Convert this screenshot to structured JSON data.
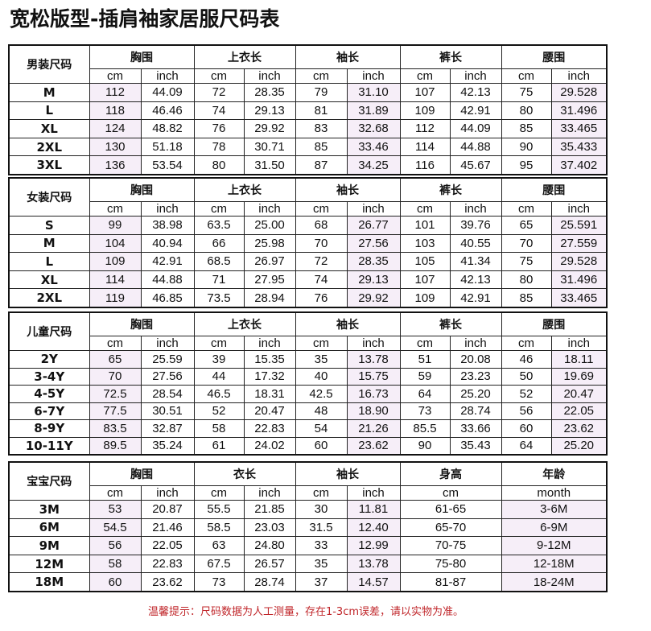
{
  "title": "宽松版型-插肩袖家居服尺码表",
  "tables": [
    {
      "label": "男装尺码",
      "groups": [
        {
          "name": "胸围",
          "units": [
            "cm",
            "inch"
          ]
        },
        {
          "name": "上衣长",
          "units": [
            "cm",
            "inch"
          ]
        },
        {
          "name": "袖长",
          "units": [
            "cm",
            "inch"
          ]
        },
        {
          "name": "裤长",
          "units": [
            "cm",
            "inch"
          ]
        },
        {
          "name": "腰围",
          "units": [
            "cm",
            "inch"
          ]
        }
      ],
      "rows": [
        [
          "M",
          "112",
          "44.09",
          "72",
          "28.35",
          "79",
          "31.10",
          "107",
          "42.13",
          "75",
          "29.528"
        ],
        [
          "L",
          "118",
          "46.46",
          "74",
          "29.13",
          "81",
          "31.89",
          "109",
          "42.91",
          "80",
          "31.496"
        ],
        [
          "XL",
          "124",
          "48.82",
          "76",
          "29.92",
          "83",
          "32.68",
          "112",
          "44.09",
          "85",
          "33.465"
        ],
        [
          "2XL",
          "130",
          "51.18",
          "78",
          "30.71",
          "85",
          "33.46",
          "114",
          "44.88",
          "90",
          "35.433"
        ],
        [
          "3XL",
          "136",
          "53.54",
          "80",
          "31.50",
          "87",
          "34.25",
          "116",
          "45.67",
          "95",
          "37.402"
        ]
      ]
    },
    {
      "label": "女装尺码",
      "groups": [
        {
          "name": "胸围",
          "units": [
            "cm",
            "inch"
          ]
        },
        {
          "name": "上衣长",
          "units": [
            "cm",
            "inch"
          ]
        },
        {
          "name": "袖长",
          "units": [
            "cm",
            "inch"
          ]
        },
        {
          "name": "裤长",
          "units": [
            "cm",
            "inch"
          ]
        },
        {
          "name": "腰围",
          "units": [
            "cm",
            "inch"
          ]
        }
      ],
      "rows": [
        [
          "S",
          "99",
          "38.98",
          "63.5",
          "25.00",
          "68",
          "26.77",
          "101",
          "39.76",
          "65",
          "25.591"
        ],
        [
          "M",
          "104",
          "40.94",
          "66",
          "25.98",
          "70",
          "27.56",
          "103",
          "40.55",
          "70",
          "27.559"
        ],
        [
          "L",
          "109",
          "42.91",
          "68.5",
          "26.97",
          "72",
          "28.35",
          "105",
          "41.34",
          "75",
          "29.528"
        ],
        [
          "XL",
          "114",
          "44.88",
          "71",
          "27.95",
          "74",
          "29.13",
          "107",
          "42.13",
          "80",
          "31.496"
        ],
        [
          "2XL",
          "119",
          "46.85",
          "73.5",
          "28.94",
          "76",
          "29.92",
          "109",
          "42.91",
          "85",
          "33.465"
        ]
      ]
    },
    {
      "label": "儿童尺码",
      "groups": [
        {
          "name": "胸围",
          "units": [
            "cm",
            "inch"
          ]
        },
        {
          "name": "上衣长",
          "units": [
            "cm",
            "inch"
          ]
        },
        {
          "name": "袖长",
          "units": [
            "cm",
            "inch"
          ]
        },
        {
          "name": "裤长",
          "units": [
            "cm",
            "inch"
          ]
        },
        {
          "name": "腰围",
          "units": [
            "cm",
            "inch"
          ]
        }
      ],
      "rows": [
        [
          "2Y",
          "65",
          "25.59",
          "39",
          "15.35",
          "35",
          "13.78",
          "51",
          "20.08",
          "46",
          "18.11"
        ],
        [
          "3-4Y",
          "70",
          "27.56",
          "44",
          "17.32",
          "40",
          "15.75",
          "59",
          "23.23",
          "50",
          "19.69"
        ],
        [
          "4-5Y",
          "72.5",
          "28.54",
          "46.5",
          "18.31",
          "42.5",
          "16.73",
          "64",
          "25.20",
          "52",
          "20.47"
        ],
        [
          "6-7Y",
          "77.5",
          "30.51",
          "52",
          "20.47",
          "48",
          "18.90",
          "73",
          "28.74",
          "56",
          "22.05"
        ],
        [
          "8-9Y",
          "83.5",
          "32.87",
          "58",
          "22.83",
          "54",
          "21.26",
          "85.5",
          "33.66",
          "60",
          "23.62"
        ],
        [
          "10-11Y",
          "89.5",
          "35.24",
          "61",
          "24.02",
          "60",
          "23.62",
          "90",
          "35.43",
          "64",
          "25.20"
        ]
      ]
    },
    {
      "label": "宝宝尺码",
      "groups": [
        {
          "name": "胸围",
          "units": [
            "cm",
            "inch"
          ]
        },
        {
          "name": "衣长",
          "units": [
            "cm",
            "inch"
          ]
        },
        {
          "name": "袖长",
          "units": [
            "cm",
            "inch"
          ]
        },
        {
          "name": "身高",
          "units": [
            "cm"
          ]
        },
        {
          "name": "年龄",
          "units": [
            "month"
          ]
        }
      ],
      "rows": [
        [
          "3M",
          "53",
          "20.87",
          "55.5",
          "21.85",
          "30",
          "11.81",
          "61-65",
          "3-6M"
        ],
        [
          "6M",
          "54.5",
          "21.46",
          "58.5",
          "23.03",
          "31.5",
          "12.40",
          "65-70",
          "6-9M"
        ],
        [
          "9M",
          "56",
          "22.05",
          "63",
          "24.80",
          "33",
          "12.99",
          "70-75",
          "9-12M"
        ],
        [
          "12M",
          "58",
          "22.83",
          "67.5",
          "26.57",
          "35",
          "13.78",
          "75-80",
          "12-18M"
        ],
        [
          "18M",
          "60",
          "23.62",
          "73",
          "28.74",
          "37",
          "14.57",
          "81-87",
          "18-24M"
        ]
      ]
    }
  ],
  "note": "温馨提示：尺码数据为人工测量，存在1-3cm误差，请以实物为准。",
  "colors": {
    "cell_shade": "#f6eef8",
    "note": "#c0262a",
    "border": "#111111"
  }
}
